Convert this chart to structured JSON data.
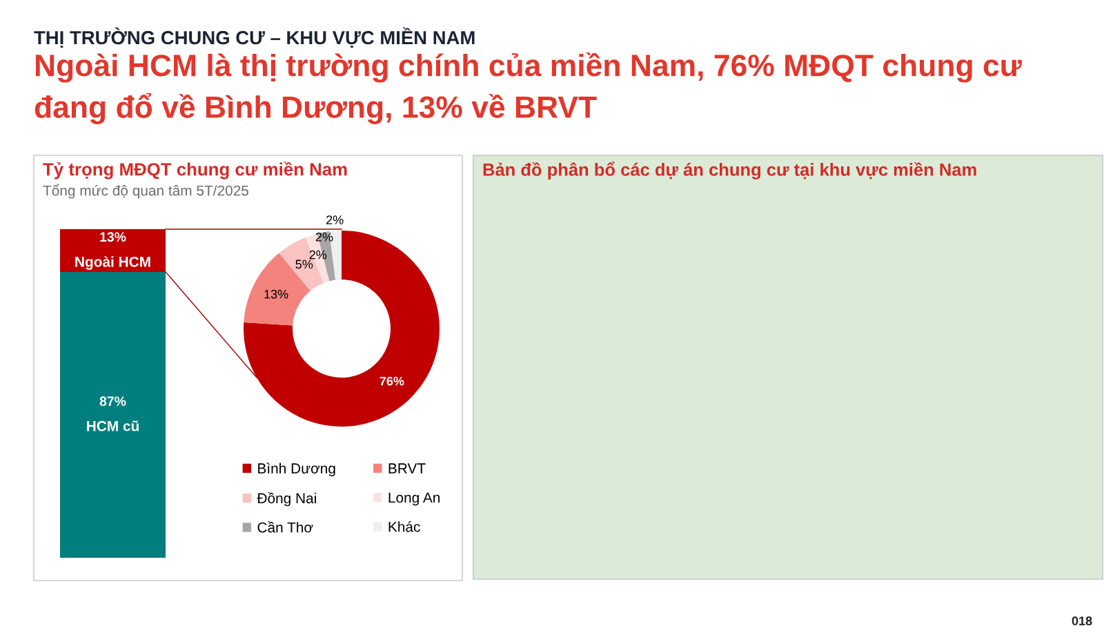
{
  "chart_data": [
    {
      "type": "other",
      "title": "THỊ TRƯỜNG CHUNG CƯ – KHU VỰC MIỀN NAM",
      "subtitle": "Ngoài HCM là thị trường chính của miền Nam, 76% MĐQT chung cư\nđang đổ về Bình Dương, 13% về BRVT",
      "annotations": [
        "018"
      ]
    },
    {
      "type": "bar",
      "title": "Tỷ trọng MĐQT chung cư miền Nam",
      "subtitle": "Tổng mức độ quan tâm 5T/2025",
      "categories": [
        null
      ],
      "stacked": true,
      "series": [
        {
          "name": "HCM cũ",
          "color": "#007f7e",
          "values": [
            87
          ],
          "value_labels": [
            "87%"
          ]
        },
        {
          "name": "Ngoài HCM",
          "color": "#c00000",
          "values": [
            13
          ],
          "value_labels": [
            "13%"
          ]
        }
      ]
    },
    {
      "type": "donut",
      "categories": [
        "Bình Dương",
        "BRVT",
        "Đồng Nai",
        "Long An",
        "Cần Thơ",
        "Khác"
      ],
      "values": [
        76,
        13,
        5,
        2,
        2,
        2
      ],
      "colors": [
        "#c00000",
        "#f4837d",
        "#f8c3c0",
        "#fbe2e1",
        "#a6a6a6",
        "#efefef"
      ],
      "value_labels": [
        "76%",
        "13%",
        "5%",
        "2%",
        "2%",
        "2%"
      ],
      "legend": "bottom"
    },
    {
      "type": "other",
      "title": "Bản đồ phân bổ các dự án chung cư tại khu vực miền Nam"
    }
  ]
}
